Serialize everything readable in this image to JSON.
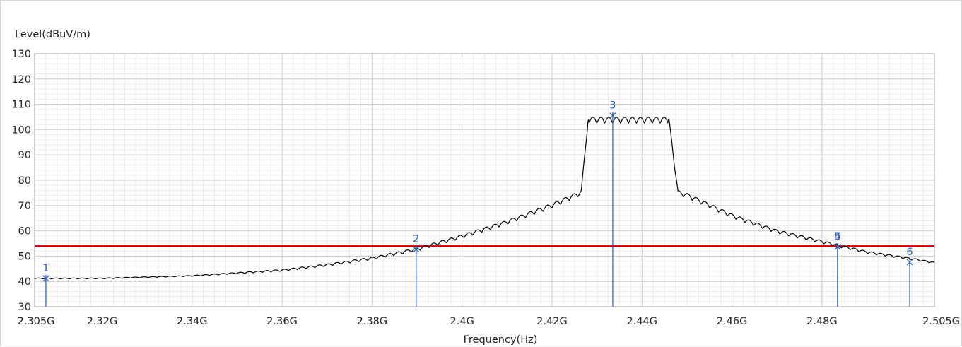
{
  "chart_data": {
    "type": "line",
    "ylabel": "Level(dBuV/m)",
    "xlabel": "Frequency(Hz)",
    "xlim": [
      2.305,
      2.505
    ],
    "ylim": [
      30,
      130
    ],
    "grid": true,
    "x_ticks": [
      {
        "value": 2.305,
        "label": "2.305G"
      },
      {
        "value": 2.32,
        "label": "2.32G"
      },
      {
        "value": 2.34,
        "label": "2.34G"
      },
      {
        "value": 2.36,
        "label": "2.36G"
      },
      {
        "value": 2.38,
        "label": "2.38G"
      },
      {
        "value": 2.4,
        "label": "2.4G"
      },
      {
        "value": 2.42,
        "label": "2.42G"
      },
      {
        "value": 2.44,
        "label": "2.44G"
      },
      {
        "value": 2.46,
        "label": "2.46G"
      },
      {
        "value": 2.48,
        "label": "2.48G"
      },
      {
        "value": 2.505,
        "label": "2.505G"
      }
    ],
    "y_ticks": [
      {
        "value": 30,
        "label": "30"
      },
      {
        "value": 40,
        "label": "40"
      },
      {
        "value": 50,
        "label": "50"
      },
      {
        "value": 60,
        "label": "60"
      },
      {
        "value": 70,
        "label": "70"
      },
      {
        "value": 80,
        "label": "80"
      },
      {
        "value": 90,
        "label": "90"
      },
      {
        "value": 100,
        "label": "100"
      },
      {
        "value": 110,
        "label": "110"
      },
      {
        "value": 120,
        "label": "120"
      },
      {
        "value": 130,
        "label": "130"
      }
    ],
    "limit_line": {
      "y": 54,
      "color": "#c00000"
    },
    "trace": {
      "color": "#000000",
      "x": [
        2.305,
        2.32,
        2.34,
        2.36,
        2.37,
        2.38,
        2.39,
        2.4,
        2.41,
        2.42,
        2.4265,
        2.428,
        2.446,
        2.448,
        2.45,
        2.46,
        2.47,
        2.48,
        2.49,
        2.5,
        2.505
      ],
      "y": [
        41,
        41,
        42,
        44,
        46,
        48.5,
        52,
        57,
        62.5,
        69,
        74,
        102.5,
        102.5,
        74,
        73,
        65,
        59,
        55,
        51,
        48.5,
        47
      ]
    },
    "markers": [
      {
        "label": "1",
        "x": 2.3075,
        "y": 41.2
      },
      {
        "label": "2",
        "x": 2.3898,
        "y": 52.7
      },
      {
        "label": "3",
        "x": 2.4335,
        "y": 105.5
      },
      {
        "label": "4",
        "x": 2.4835,
        "y": 53.7
      },
      {
        "label": "5",
        "x": 2.4835,
        "y": 53.7
      },
      {
        "label": "6",
        "x": 2.4995,
        "y": 47.6
      }
    ],
    "marker_color": "#2f5fb0"
  }
}
